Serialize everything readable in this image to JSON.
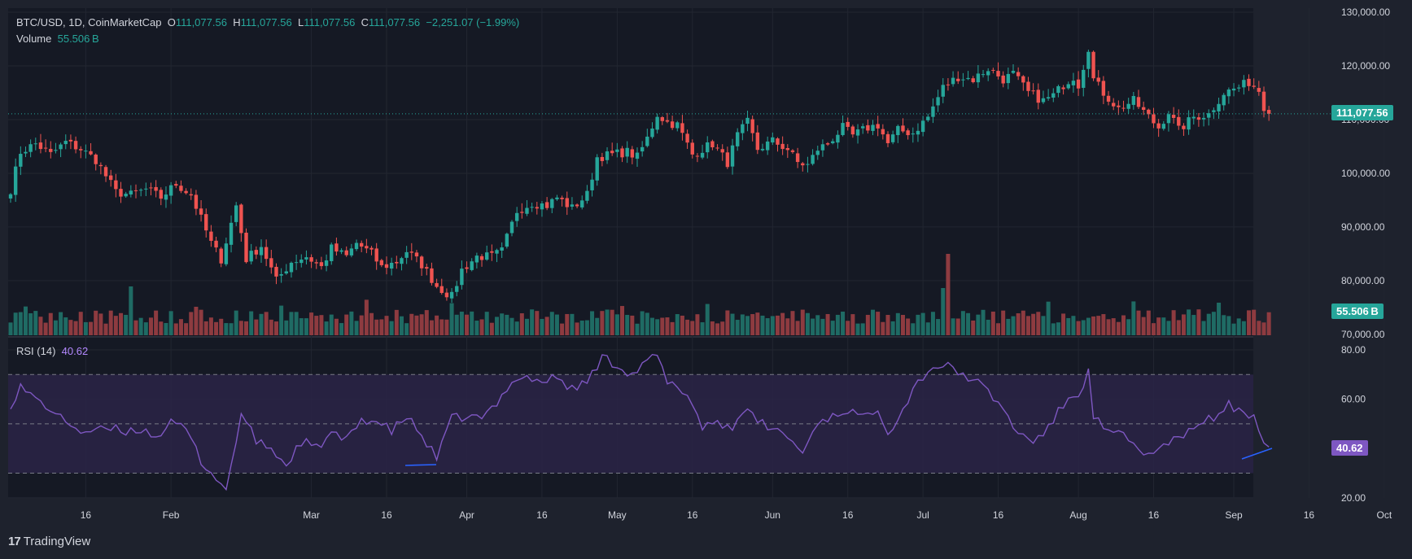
{
  "header": {
    "symbol": "BTC/USD, 1D, CoinMarketCap",
    "o_label": "O",
    "o": "111,077.56",
    "h_label": "H",
    "h": "111,077.56",
    "l_label": "L",
    "l": "111,077.56",
    "c_label": "C",
    "c": "111,077.56",
    "change": "−2,251.07 (−1.99%)",
    "volume_label": "Volume",
    "volume_value": "55.506 B"
  },
  "rsi_legend": {
    "label": "RSI (14)",
    "value": "40.62"
  },
  "price_tag": "111,077.56",
  "volume_tag": "55.506 B",
  "rsi_tag": "40.62",
  "brand": {
    "logo": "17",
    "name": "TradingView"
  },
  "colors": {
    "bg": "#1e222d",
    "pane": "#151924",
    "up": "#26a69a",
    "down": "#ef5350",
    "rsi": "#7e57c2",
    "rsi_band": "#2a2446",
    "drawing": "#2962ff",
    "grid": "#2a2e39"
  },
  "chart_data": [
    {
      "type": "candlestick",
      "title": "BTC/USD, 1D, CoinMarketCap",
      "y_ticks": [
        "130,000.00",
        "120,000.00",
        "110,000.00",
        "100,000.00",
        "90,000.00",
        "80,000.00",
        "70,000.00"
      ],
      "y_tick_values": [
        130000,
        120000,
        110000,
        100000,
        90000,
        80000,
        70000
      ],
      "ylim": [
        70000,
        130000
      ],
      "x_ticks": [
        "16",
        "Feb",
        "Mar",
        "16",
        "Apr",
        "16",
        "May",
        "16",
        "Jun",
        "16",
        "Jul",
        "16",
        "Aug",
        "16",
        "Sep",
        "16",
        "Oct"
      ],
      "x_tick_days": [
        15,
        32,
        60,
        75,
        91,
        106,
        121,
        136,
        152,
        167,
        182,
        197,
        213,
        228,
        244,
        259,
        274
      ],
      "last_price": 111077.56,
      "close_keypoints": [
        [
          0,
          97000
        ],
        [
          2,
          104000
        ],
        [
          5,
          105500
        ],
        [
          8,
          103500
        ],
        [
          11,
          105800
        ],
        [
          14,
          104500
        ],
        [
          17,
          102500
        ],
        [
          21,
          96500
        ],
        [
          24,
          96000
        ],
        [
          27,
          97000
        ],
        [
          30,
          95500
        ],
        [
          33,
          98000
        ],
        [
          36,
          96000
        ],
        [
          40,
          87000
        ],
        [
          42,
          84000
        ],
        [
          45,
          94000
        ],
        [
          47,
          84000
        ],
        [
          50,
          86500
        ],
        [
          53,
          80000
        ],
        [
          56,
          83500
        ],
        [
          59,
          84500
        ],
        [
          62,
          82500
        ],
        [
          64,
          86000
        ],
        [
          67,
          84500
        ],
        [
          69,
          87000
        ],
        [
          72,
          85000
        ],
        [
          74,
          82500
        ],
        [
          77,
          83500
        ],
        [
          79,
          85500
        ],
        [
          82,
          83000
        ],
        [
          85,
          79000
        ],
        [
          88,
          77000
        ],
        [
          90,
          82000
        ],
        [
          93,
          84500
        ],
        [
          96,
          84500
        ],
        [
          98,
          85500
        ],
        [
          101,
          93000
        ],
        [
          104,
          94500
        ],
        [
          107,
          94000
        ],
        [
          109,
          95500
        ],
        [
          112,
          93500
        ],
        [
          115,
          96000
        ],
        [
          117,
          103000
        ],
        [
          120,
          103500
        ],
        [
          123,
          104000
        ],
        [
          125,
          103000
        ],
        [
          127,
          106500
        ],
        [
          129,
          111000
        ],
        [
          131,
          109500
        ],
        [
          133,
          109000
        ],
        [
          136,
          103500
        ],
        [
          138,
          104500
        ],
        [
          140,
          105500
        ],
        [
          143,
          102000
        ],
        [
          145,
          107000
        ],
        [
          147,
          109500
        ],
        [
          149,
          104500
        ],
        [
          152,
          106000
        ],
        [
          155,
          104500
        ],
        [
          157,
          102000
        ],
        [
          159,
          101500
        ],
        [
          161,
          104500
        ],
        [
          163,
          105500
        ],
        [
          166,
          108500
        ],
        [
          168,
          107000
        ],
        [
          171,
          108500
        ],
        [
          173,
          109000
        ],
        [
          175,
          105500
        ],
        [
          177,
          108000
        ],
        [
          180,
          107500
        ],
        [
          183,
          110500
        ],
        [
          186,
          116000
        ],
        [
          189,
          118000
        ],
        [
          192,
          117500
        ],
        [
          195,
          119500
        ],
        [
          198,
          117500
        ],
        [
          200,
          118500
        ],
        [
          203,
          115000
        ],
        [
          206,
          113500
        ],
        [
          208,
          114500
        ],
        [
          210,
          116500
        ],
        [
          212,
          118000
        ],
        [
          213,
          116500
        ],
        [
          215,
          123500
        ],
        [
          216,
          117500
        ],
        [
          218,
          115000
        ],
        [
          221,
          112000
        ],
        [
          224,
          113500
        ],
        [
          227,
          110500
        ],
        [
          229,
          108500
        ],
        [
          231,
          111500
        ],
        [
          233,
          108000
        ],
        [
          236,
          110500
        ],
        [
          239,
          111000
        ],
        [
          242,
          115000
        ],
        [
          245,
          116000
        ],
        [
          247,
          117000
        ],
        [
          249,
          115500
        ],
        [
          250,
          112500
        ],
        [
          251,
          111077.56
        ]
      ]
    },
    {
      "type": "bar",
      "title": "Volume",
      "last_value": "55.506 B",
      "series_note": "bar colour follows candle direction"
    },
    {
      "type": "line",
      "title": "RSI (14)",
      "y_ticks": [
        "80.00",
        "60.00",
        "20.00"
      ],
      "y_tick_values": [
        80,
        60,
        20
      ],
      "ylim": [
        20,
        80
      ],
      "bands": [
        30,
        50,
        70
      ],
      "last_value": 40.62,
      "keypoints": [
        [
          0,
          58
        ],
        [
          2,
          65
        ],
        [
          5,
          60
        ],
        [
          8,
          56
        ],
        [
          10,
          52
        ],
        [
          12,
          50
        ],
        [
          14,
          47
        ],
        [
          17,
          47
        ],
        [
          20,
          48
        ],
        [
          23,
          47
        ],
        [
          26,
          48
        ],
        [
          29,
          45
        ],
        [
          32,
          50
        ],
        [
          35,
          48
        ],
        [
          38,
          35
        ],
        [
          41,
          28
        ],
        [
          43,
          23
        ],
        [
          46,
          54
        ],
        [
          49,
          43
        ],
        [
          52,
          40
        ],
        [
          55,
          33
        ],
        [
          58,
          43
        ],
        [
          61,
          40
        ],
        [
          64,
          46
        ],
        [
          67,
          43
        ],
        [
          70,
          52
        ],
        [
          73,
          51
        ],
        [
          76,
          47
        ],
        [
          79,
          53
        ],
        [
          82,
          45
        ],
        [
          85,
          36
        ],
        [
          88,
          52
        ],
        [
          91,
          53
        ],
        [
          94,
          52
        ],
        [
          97,
          58
        ],
        [
          100,
          68
        ],
        [
          103,
          69
        ],
        [
          106,
          67
        ],
        [
          109,
          69
        ],
        [
          112,
          64
        ],
        [
          115,
          67
        ],
        [
          118,
          77
        ],
        [
          121,
          74
        ],
        [
          124,
          70
        ],
        [
          127,
          75
        ],
        [
          129,
          78
        ],
        [
          131,
          66
        ],
        [
          133,
          65
        ],
        [
          135,
          62
        ],
        [
          138,
          49
        ],
        [
          141,
          51
        ],
        [
          144,
          48
        ],
        [
          146,
          56
        ],
        [
          149,
          51
        ],
        [
          152,
          48
        ],
        [
          155,
          45
        ],
        [
          158,
          38
        ],
        [
          161,
          51
        ],
        [
          164,
          53
        ],
        [
          167,
          56
        ],
        [
          170,
          52
        ],
        [
          173,
          57
        ],
        [
          175,
          47
        ],
        [
          177,
          52
        ],
        [
          180,
          64
        ],
        [
          183,
          72
        ],
        [
          186,
          74
        ],
        [
          189,
          71
        ],
        [
          192,
          68
        ],
        [
          195,
          63
        ],
        [
          198,
          56
        ],
        [
          201,
          46
        ],
        [
          204,
          43
        ],
        [
          207,
          48
        ],
        [
          210,
          58
        ],
        [
          213,
          62
        ],
        [
          215,
          71
        ],
        [
          216,
          53
        ],
        [
          219,
          46
        ],
        [
          222,
          45
        ],
        [
          225,
          40
        ],
        [
          228,
          37
        ],
        [
          231,
          43
        ],
        [
          234,
          44
        ],
        [
          237,
          51
        ],
        [
          240,
          52
        ],
        [
          243,
          58
        ],
        [
          246,
          53
        ],
        [
          248,
          54
        ],
        [
          250,
          44
        ],
        [
          251,
          40.62
        ]
      ]
    }
  ]
}
